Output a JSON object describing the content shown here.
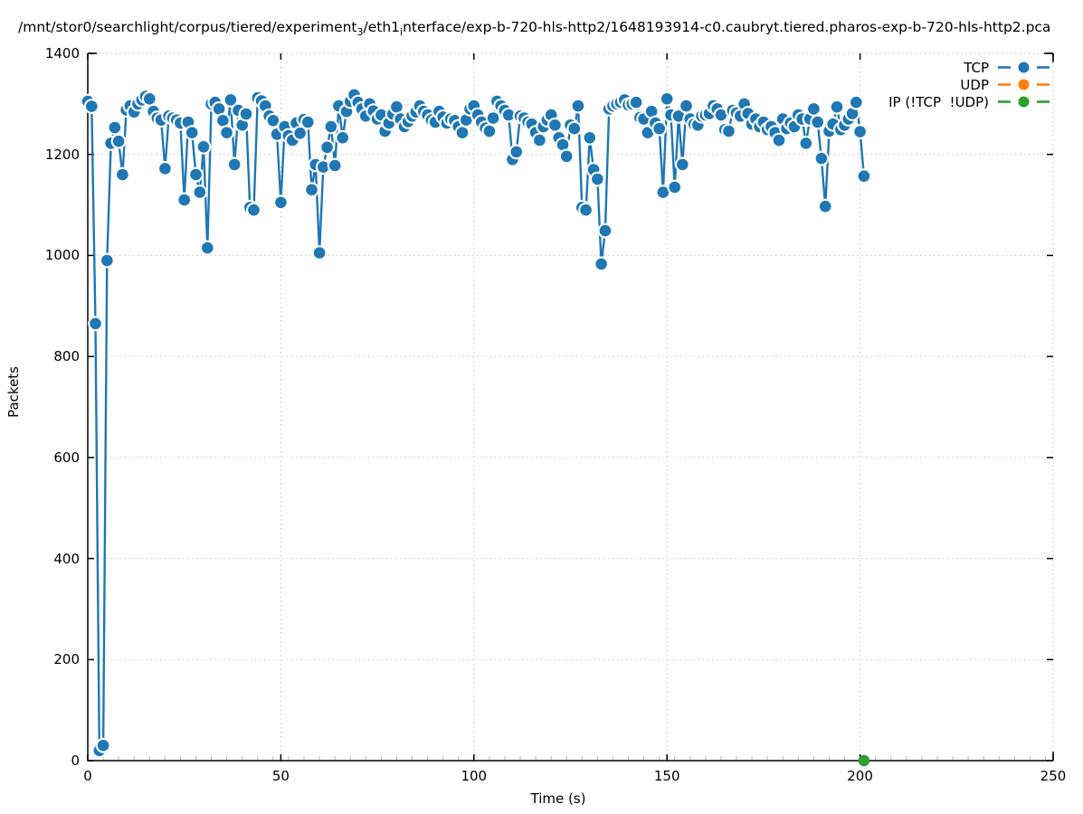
{
  "title": {
    "part1": "/mnt/stor0/searchlight/corpus/tiered/experiment",
    "sub1": "3",
    "part2": "/eth1",
    "sub2": "i",
    "part3": "nterface/exp-b-720-hls-http2/1648193914-c0.caubryt.tiered.pharos-exp-b-720-hls-http2.pca"
  },
  "chart_data": {
    "type": "line",
    "title_full": "/mnt/stor0/searchlight/corpus/tiered/experiment_3/eth1_interface/exp-b-720-hls-http2/1648193914-c0.caubryt.tiered.pharos-exp-b-720-hls-http2.pca",
    "xlabel": "Time (s)",
    "ylabel": "Packets",
    "xlim": [
      0,
      250
    ],
    "ylim": [
      0,
      1400
    ],
    "xticks": [
      0,
      50,
      100,
      150,
      200,
      250
    ],
    "yticks": [
      0,
      200,
      400,
      600,
      800,
      1000,
      1200,
      1400
    ],
    "grid": true,
    "legend_position": "top-right",
    "marker_style": "filled-circle with white point-interval box",
    "series": [
      {
        "name": "TCP",
        "color": "#1f77b4",
        "marker": "circle",
        "x_start": 0,
        "x_step": 1,
        "values": [
          1305,
          1295,
          865,
          20,
          30,
          990,
          1222,
          1253,
          1226,
          1160,
          1288,
          1296,
          1284,
          1300,
          1308,
          1315,
          1310,
          1285,
          1272,
          1268,
          1172,
          1276,
          1272,
          1268,
          1262,
          1110,
          1264,
          1243,
          1160,
          1125,
          1215,
          1015,
          1300,
          1303,
          1290,
          1267,
          1243,
          1308,
          1180,
          1287,
          1258,
          1280,
          1095,
          1090,
          1312,
          1306,
          1296,
          1276,
          1267,
          1240,
          1105,
          1255,
          1237,
          1228,
          1262,
          1242,
          1269,
          1264,
          1130,
          1180,
          1005,
          1175,
          1214,
          1255,
          1178,
          1296,
          1233,
          1285,
          1305,
          1318,
          1303,
          1290,
          1276,
          1300,
          1286,
          1270,
          1278,
          1246,
          1262,
          1280,
          1294,
          1270,
          1255,
          1265,
          1276,
          1284,
          1296,
          1285,
          1278,
          1268,
          1264,
          1285,
          1274,
          1262,
          1270,
          1267,
          1255,
          1243,
          1268,
          1290,
          1296,
          1278,
          1264,
          1252,
          1246,
          1272,
          1305,
          1296,
          1287,
          1278,
          1190,
          1205,
          1276,
          1272,
          1264,
          1260,
          1243,
          1228,
          1255,
          1268,
          1278,
          1258,
          1233,
          1219,
          1196,
          1258,
          1251,
          1296,
          1095,
          1090,
          1233,
          1170,
          1151,
          983,
          1049,
          1290,
          1296,
          1300,
          1303,
          1308,
          1298,
          1300,
          1303,
          1273,
          1270,
          1243,
          1285,
          1262,
          1251,
          1125,
          1310,
          1278,
          1135,
          1276,
          1180,
          1296,
          1270,
          1260,
          1258,
          1276,
          1278,
          1281,
          1296,
          1290,
          1278,
          1249,
          1246,
          1287,
          1282,
          1276,
          1300,
          1281,
          1260,
          1270,
          1255,
          1264,
          1249,
          1255,
          1243,
          1228,
          1270,
          1251,
          1262,
          1255,
          1278,
          1270,
          1222,
          1270,
          1290,
          1264,
          1192,
          1097,
          1246,
          1260,
          1294,
          1249,
          1258,
          1270,
          1281,
          1303,
          1245,
          1157
        ]
      },
      {
        "name": "UDP",
        "color": "#ff7f0e",
        "marker": "circle",
        "points": []
      },
      {
        "name": "IP (!TCP  !UDP)",
        "color": "#2ca02c",
        "marker": "circle",
        "points": [
          [
            201,
            0
          ]
        ]
      }
    ]
  },
  "colors": {
    "axis": "#000000",
    "grid": "#c9c9c9",
    "minor_tick": "#8fcc8f",
    "background": "#ffffff"
  }
}
